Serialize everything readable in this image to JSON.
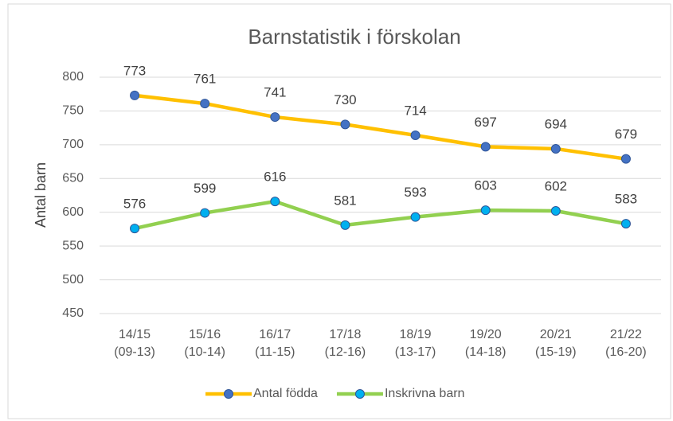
{
  "chart_data": {
    "type": "line",
    "title": "Barnstatistik i förskolan",
    "y_label": "Antal barn",
    "categories": [
      "14/15\n(09-13)",
      "15/16\n(10-14)",
      "16/17\n(11-15)",
      "17/18\n(12-16)",
      "18/19\n(13-17)",
      "19/20\n(14-18)",
      "20/21\n(15-19)",
      "21/22\n(16-20)"
    ],
    "series": [
      {
        "name": "Antal födda",
        "color": "#FFC000",
        "marker_color": "#4472C4",
        "values": [
          773,
          761,
          741,
          730,
          714,
          697,
          694,
          679
        ]
      },
      {
        "name": "Inskrivna barn",
        "color": "#92D050",
        "marker_color": "#00B0F0",
        "values": [
          576,
          599,
          616,
          581,
          593,
          603,
          602,
          583
        ]
      }
    ],
    "ylim": [
      450,
      800
    ],
    "yticks": [
      450,
      500,
      550,
      600,
      650,
      700,
      750,
      800
    ],
    "grid": true,
    "legend": "bottom"
  }
}
